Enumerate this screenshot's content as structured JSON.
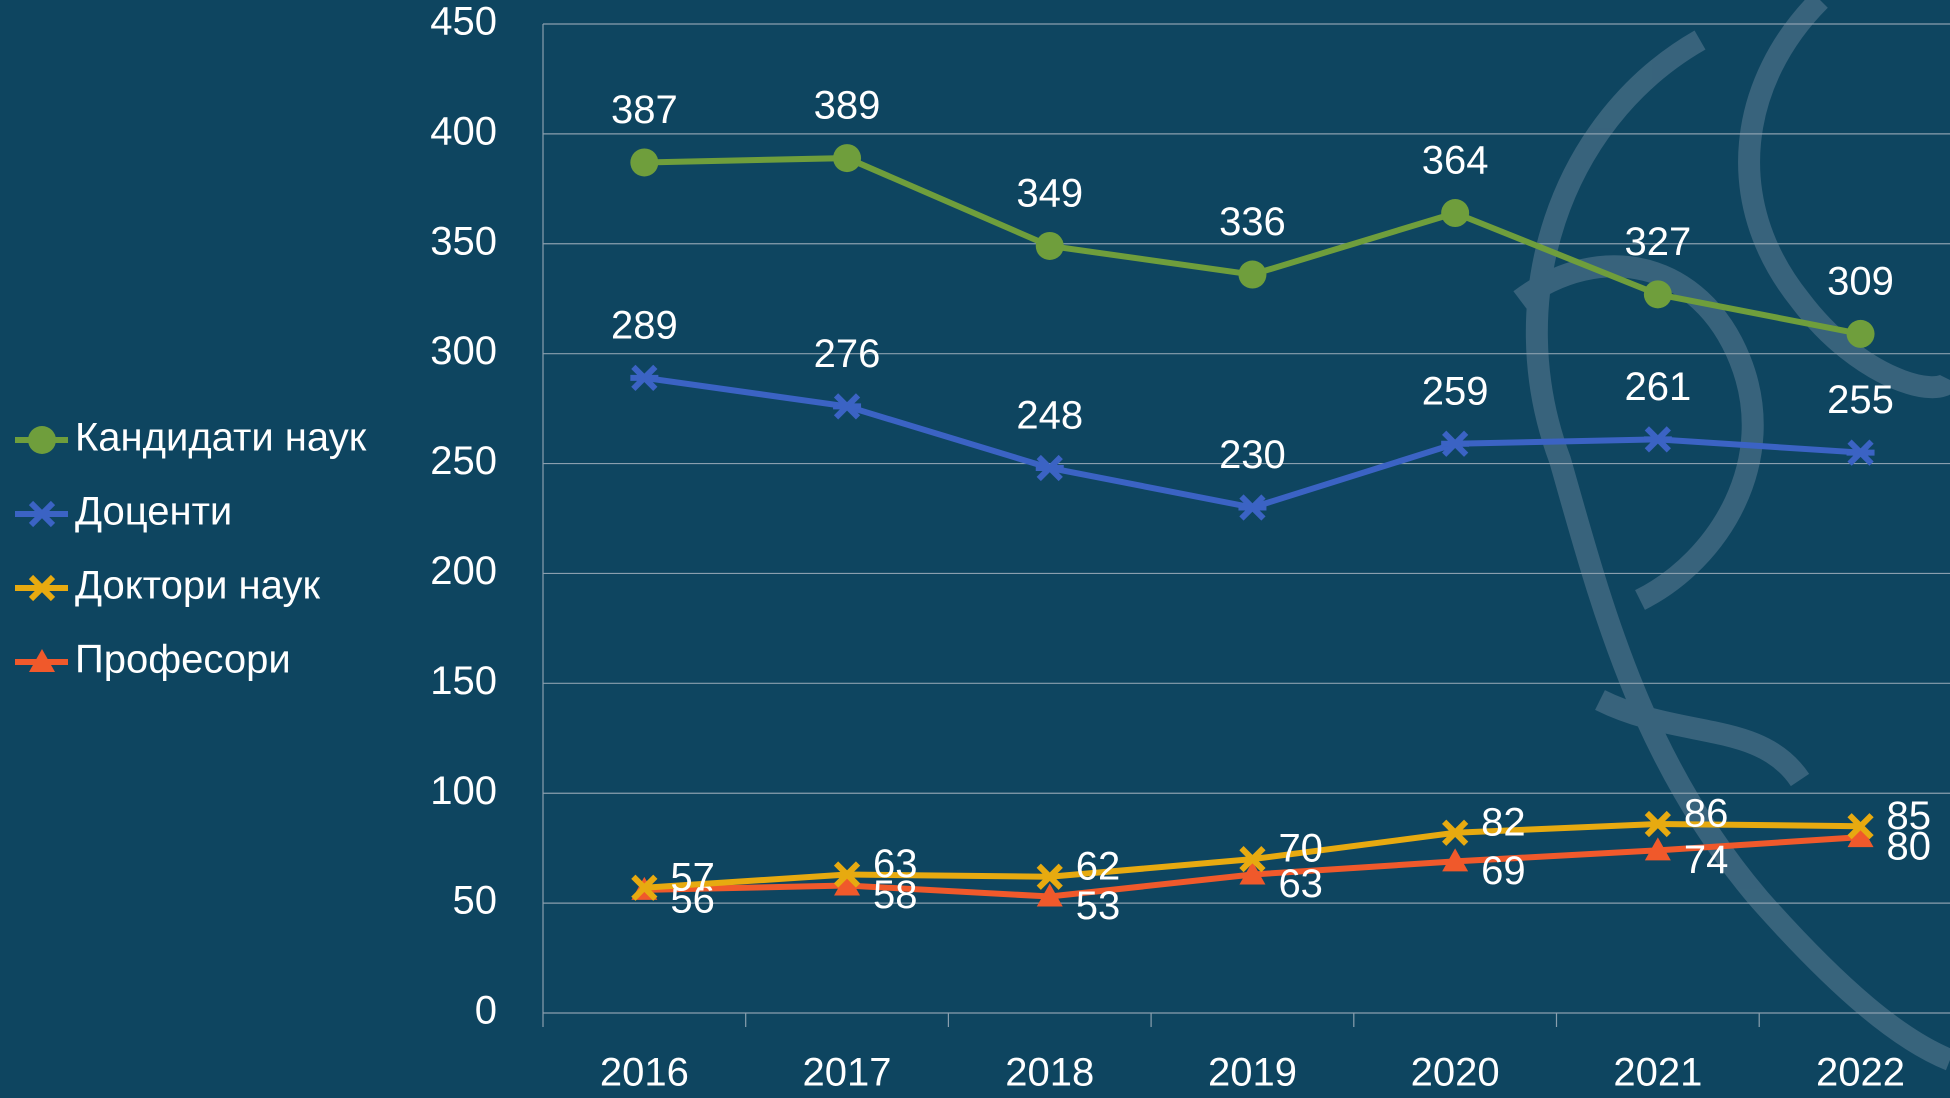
{
  "chart_data": {
    "type": "line",
    "categories": [
      "2016",
      "2017",
      "2018",
      "2019",
      "2020",
      "2021",
      "2022"
    ],
    "series": [
      {
        "name": "Професори",
        "color": "#f0592b",
        "marker": "triangle",
        "values": [
          56,
          58,
          53,
          63,
          69,
          74,
          80
        ]
      },
      {
        "name": "Доктори наук",
        "color": "#e7aa10",
        "marker": "x",
        "values": [
          57,
          63,
          62,
          70,
          82,
          86,
          85
        ]
      },
      {
        "name": "Доценти",
        "color": "#3b63c4",
        "marker": "star",
        "values": [
          289,
          276,
          248,
          230,
          259,
          261,
          255
        ]
      },
      {
        "name": "Кандидати наук",
        "color": "#6f9e3c",
        "marker": "circle",
        "values": [
          387,
          389,
          349,
          336,
          364,
          327,
          309
        ]
      }
    ],
    "ylim": [
      0,
      450
    ],
    "yticks": [
      0,
      50,
      100,
      150,
      200,
      250,
      300,
      350,
      400,
      450
    ],
    "grid": true
  }
}
